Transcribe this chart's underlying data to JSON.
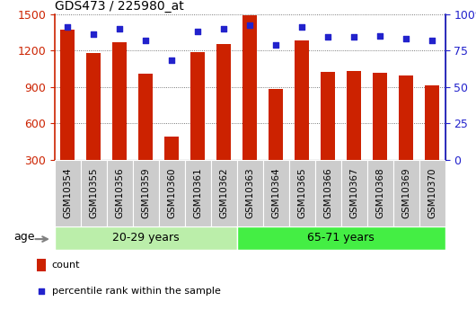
{
  "title": "GDS473 / 225980_at",
  "samples": [
    "GSM10354",
    "GSM10355",
    "GSM10356",
    "GSM10359",
    "GSM10360",
    "GSM10361",
    "GSM10362",
    "GSM10363",
    "GSM10364",
    "GSM10365",
    "GSM10366",
    "GSM10367",
    "GSM10368",
    "GSM10369",
    "GSM10370"
  ],
  "counts": [
    1370,
    1175,
    1270,
    1010,
    490,
    1185,
    1255,
    1490,
    880,
    1285,
    1020,
    1030,
    1015,
    990,
    910
  ],
  "percentiles": [
    91,
    86,
    90,
    82,
    68,
    88,
    90,
    92,
    79,
    91,
    84,
    84,
    85,
    83,
    82
  ],
  "group1_label": "20-29 years",
  "group2_label": "65-71 years",
  "group1_count": 7,
  "group2_count": 8,
  "ylim_left": [
    300,
    1500
  ],
  "ylim_right": [
    0,
    100
  ],
  "yticks_left": [
    300,
    600,
    900,
    1200,
    1500
  ],
  "yticks_right": [
    0,
    25,
    50,
    75,
    100
  ],
  "bar_color": "#cc2200",
  "dot_color": "#2222cc",
  "group1_bg": "#bbeeaa",
  "group2_bg": "#44ee44",
  "age_label": "age",
  "legend_count": "count",
  "legend_pct": "percentile rank within the sample",
  "bar_width": 0.55,
  "left_axis_color": "#cc2200",
  "right_axis_color": "#2222cc",
  "tick_label_bg": "#cccccc",
  "tick_label_border": "#aaaaaa",
  "grid_color": "#555555",
  "title_fontsize": 10,
  "tick_fontsize": 7.5,
  "band_fontsize": 9,
  "legend_fontsize": 8
}
